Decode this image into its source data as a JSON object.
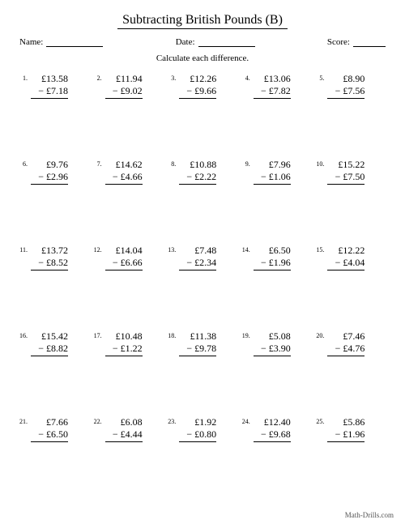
{
  "title": "Subtracting British Pounds (B)",
  "labels": {
    "name": "Name:",
    "date": "Date:",
    "score": "Score:"
  },
  "instruction": "Calculate each difference.",
  "footer": "Math-Drills.com",
  "currency": "£",
  "minus": "−",
  "problems": [
    {
      "n": "1.",
      "a": "13.58",
      "b": "7.18"
    },
    {
      "n": "2.",
      "a": "11.94",
      "b": "9.02"
    },
    {
      "n": "3.",
      "a": "12.26",
      "b": "9.66"
    },
    {
      "n": "4.",
      "a": "13.06",
      "b": "7.82"
    },
    {
      "n": "5.",
      "a": "8.90",
      "b": "7.56"
    },
    {
      "n": "6.",
      "a": "9.76",
      "b": "2.96"
    },
    {
      "n": "7.",
      "a": "14.62",
      "b": "4.66"
    },
    {
      "n": "8.",
      "a": "10.88",
      "b": "2.22"
    },
    {
      "n": "9.",
      "a": "7.96",
      "b": "1.06"
    },
    {
      "n": "10.",
      "a": "15.22",
      "b": "7.50"
    },
    {
      "n": "11.",
      "a": "13.72",
      "b": "8.52"
    },
    {
      "n": "12.",
      "a": "14.04",
      "b": "6.66"
    },
    {
      "n": "13.",
      "a": "7.48",
      "b": "2.34"
    },
    {
      "n": "14.",
      "a": "6.50",
      "b": "1.96"
    },
    {
      "n": "15.",
      "a": "12.22",
      "b": "4.04"
    },
    {
      "n": "16.",
      "a": "15.42",
      "b": "8.82"
    },
    {
      "n": "17.",
      "a": "10.48",
      "b": "1.22"
    },
    {
      "n": "18.",
      "a": "11.38",
      "b": "9.78"
    },
    {
      "n": "19.",
      "a": "5.08",
      "b": "3.90"
    },
    {
      "n": "20.",
      "a": "7.46",
      "b": "4.76"
    },
    {
      "n": "21.",
      "a": "7.66",
      "b": "6.50"
    },
    {
      "n": "22.",
      "a": "6.08",
      "b": "4.44"
    },
    {
      "n": "23.",
      "a": "1.92",
      "b": "0.80"
    },
    {
      "n": "24.",
      "a": "12.40",
      "b": "9.68"
    },
    {
      "n": "25.",
      "a": "5.86",
      "b": "1.96"
    }
  ]
}
